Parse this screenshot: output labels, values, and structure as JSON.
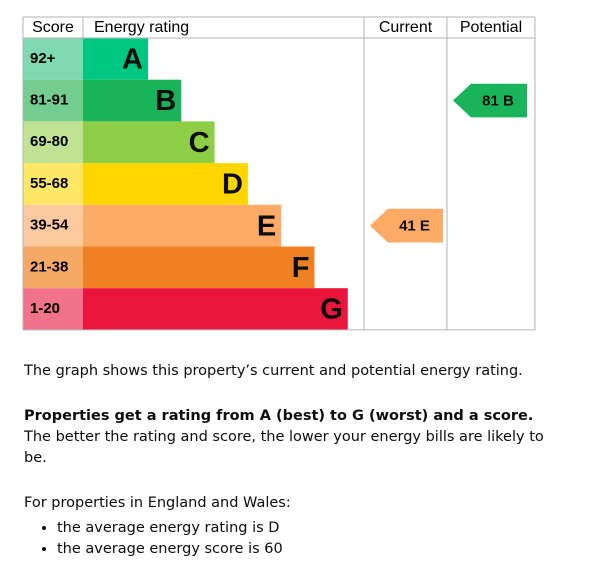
{
  "header": {
    "score": "Score",
    "rating": "Energy rating",
    "current": "Current",
    "potential": "Potential"
  },
  "bands": [
    {
      "score": "92+",
      "letter": "A",
      "color": "#00c781",
      "score_color": "#7fd9b0"
    },
    {
      "score": "81-91",
      "letter": "B",
      "color": "#19b459",
      "score_color": "#72cd8f"
    },
    {
      "score": "69-80",
      "letter": "C",
      "color": "#8dce46",
      "score_color": "#bfe392"
    },
    {
      "score": "55-68",
      "letter": "D",
      "color": "#ffd500",
      "score_color": "#ffe766"
    },
    {
      "score": "39-54",
      "letter": "E",
      "color": "#fcaa65",
      "score_color": "#fdcaa0"
    },
    {
      "score": "21-38",
      "letter": "F",
      "color": "#ef8023",
      "score_color": "#f5a965"
    },
    {
      "score": "1-20",
      "letter": "G",
      "color": "#e9153b",
      "score_color": "#f0738a"
    }
  ],
  "current": {
    "score": 41,
    "rating": "E"
  },
  "potential": {
    "score": 81,
    "rating": "B"
  },
  "text": {
    "intro": "The graph shows this property’s current and potential energy rating.",
    "para_bold": "Properties get a rating from A (best) to G (worst) and a score.",
    "para_rest": " The better the rating and score, the lower your energy bills are likely to be.",
    "region": "For properties in England and Wales:",
    "bullets": [
      "the average energy rating is D",
      "the average energy score is 60"
    ]
  }
}
